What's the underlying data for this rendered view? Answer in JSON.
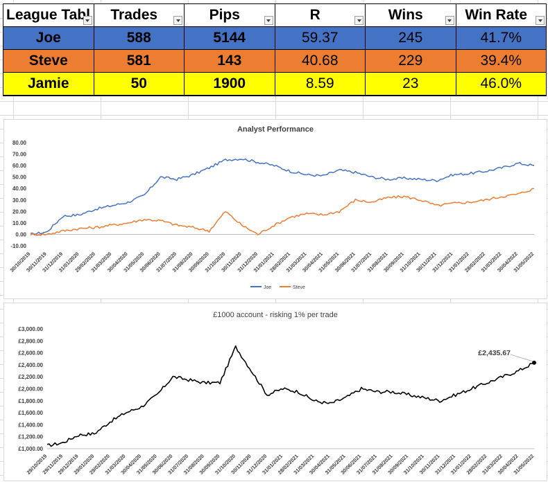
{
  "league_table": {
    "headers": [
      "League Tabl",
      "Trades",
      "Pips",
      "R",
      "Wins",
      "Win Rate"
    ],
    "rows": [
      {
        "name": "Joe",
        "trades": "588",
        "pips": "5144",
        "r": "59.37",
        "wins": "245",
        "win_rate": "41.7%",
        "color": "#4472c4"
      },
      {
        "name": "Steve",
        "trades": "581",
        "pips": "143",
        "r": "40.68",
        "wins": "229",
        "win_rate": "39.4%",
        "color": "#ed7d31"
      },
      {
        "name": "Jamie",
        "trades": "50",
        "pips": "1900",
        "r": "8.59",
        "wins": "23",
        "win_rate": "46.0%",
        "color": "#ffff00"
      }
    ]
  },
  "chart_data": [
    {
      "type": "line",
      "title": "Analyst Performance",
      "xlabel": "",
      "ylabel": "",
      "ylim": [
        -10,
        80
      ],
      "yticks": [
        "80.00",
        "70.00",
        "60.00",
        "50.00",
        "40.00",
        "30.00",
        "20.00",
        "10.00",
        "0.00",
        "-10.00"
      ],
      "x": [
        "30/10/2019",
        "30/11/2019",
        "31/12/2019",
        "31/01/2020",
        "29/02/2020",
        "31/03/2020",
        "30/04/2020",
        "31/05/2020",
        "30/06/2020",
        "31/07/2020",
        "31/08/2020",
        "30/09/2020",
        "31/10/2020",
        "30/11/2020",
        "31/12/2020",
        "31/01/2021",
        "28/02/2021",
        "31/03/2021",
        "30/04/2021",
        "31/05/2021",
        "30/06/2021",
        "31/07/2021",
        "31/08/2021",
        "30/09/2021",
        "31/10/2021",
        "30/11/2021",
        "31/12/2021",
        "31/01/2022",
        "28/02/2022",
        "31/03/2022",
        "30/04/2022",
        "31/05/2022"
      ],
      "series": [
        {
          "name": "Joe",
          "color": "#4472c4",
          "values": [
            0,
            2,
            16,
            17,
            22,
            25,
            28,
            34,
            50,
            48,
            52,
            58,
            65,
            66,
            63,
            60,
            55,
            52,
            51,
            56,
            54,
            50,
            48,
            49,
            48,
            47,
            52,
            53,
            55,
            58,
            62,
            60
          ]
        },
        {
          "name": "Steve",
          "color": "#ed7d31",
          "values": [
            0,
            0,
            3,
            5,
            6,
            8,
            10,
            13,
            12,
            8,
            6,
            3,
            20,
            8,
            0,
            8,
            15,
            18,
            17,
            20,
            30,
            28,
            32,
            33,
            30,
            25,
            27,
            28,
            30,
            33,
            35,
            40
          ]
        }
      ],
      "legend_position": "bottom"
    },
    {
      "type": "line",
      "title": "£1000 account - risking 1% per trade",
      "xlabel": "",
      "ylabel": "",
      "ylim": [
        1000,
        3000
      ],
      "yticks": [
        "£3,000.00",
        "£2,800.00",
        "£2,600.00",
        "£2,400.00",
        "£2,200.00",
        "£2,000.00",
        "£1,800.00",
        "£1,600.00",
        "£1,400.00",
        "£1,200.00",
        "£1,000.00"
      ],
      "x": [
        "29/10/2019",
        "29/11/2019",
        "29/12/2019",
        "29/01/2020",
        "29/02/2020",
        "31/03/2020",
        "30/04/2020",
        "31/05/2020",
        "30/06/2020",
        "31/07/2020",
        "31/08/2020",
        "30/09/2020",
        "31/10/2020",
        "30/11/2020",
        "31/12/2020",
        "31/01/2021",
        "28/02/2021",
        "31/03/2021",
        "30/04/2021",
        "31/05/2021",
        "30/06/2021",
        "31/07/2021",
        "31/08/2021",
        "30/09/2021",
        "31/10/2021",
        "30/11/2021",
        "31/12/2021",
        "31/01/2022",
        "28/02/2022",
        "31/03/2022",
        "30/04/2022",
        "31/05/2022"
      ],
      "series": [
        {
          "name": "",
          "color": "#000000",
          "values": [
            1050,
            1100,
            1230,
            1250,
            1450,
            1600,
            1700,
            1900,
            2200,
            2150,
            2100,
            2100,
            2700,
            2300,
            1900,
            2000,
            1950,
            1800,
            1750,
            1850,
            2000,
            1950,
            1950,
            1900,
            1850,
            1800,
            1900,
            2000,
            2100,
            2200,
            2300,
            2435.67
          ]
        }
      ],
      "annotation": "£2,435.67",
      "legend_position": "none"
    }
  ]
}
